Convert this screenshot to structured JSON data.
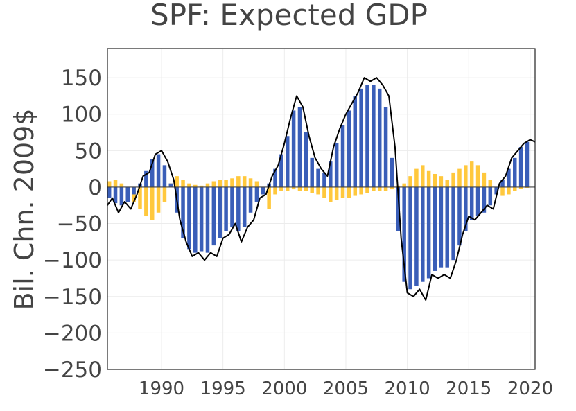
{
  "chart_data": {
    "type": "bar",
    "title": "SPF: Expected GDP",
    "xlabel": "",
    "ylabel": "Bil. Chn. 2009$",
    "xlim": [
      1985.6,
      2020.4
    ],
    "ylim": [
      -250,
      190
    ],
    "x_ticks": [
      {
        "value": 1990,
        "label": "1990"
      },
      {
        "value": 1995,
        "label": "1995"
      },
      {
        "value": 2000,
        "label": "2000"
      },
      {
        "value": 2005,
        "label": "2005"
      },
      {
        "value": 2010,
        "label": "2010"
      },
      {
        "value": 2015,
        "label": "2015"
      },
      {
        "value": 2020,
        "label": "2020"
      }
    ],
    "y_ticks": [
      {
        "value": 150,
        "label": "150"
      },
      {
        "value": 100,
        "label": "100"
      },
      {
        "value": 50,
        "label": "50"
      },
      {
        "value": 0,
        "label": "0"
      },
      {
        "value": -50,
        "label": "−50"
      },
      {
        "value": -100,
        "label": "−100"
      },
      {
        "value": -150,
        "label": "−150"
      },
      {
        "value": -200,
        "label": "−200"
      },
      {
        "value": -250,
        "label": "−250"
      }
    ],
    "grid": true,
    "legend": "none",
    "colors": {
      "blue": "#3a5eb8",
      "yellow": "#ffc83d",
      "line": "#000000",
      "grid": "#ececec"
    },
    "series": [
      {
        "id": "blue-bars",
        "x": [
          1985.75,
          1986.25,
          1986.75,
          1987.25,
          1987.75,
          1988.25,
          1988.75,
          1989.25,
          1989.75,
          1990.25,
          1990.75,
          1991.25,
          1991.75,
          1992.25,
          1992.75,
          1993.25,
          1993.75,
          1994.25,
          1994.75,
          1995.25,
          1995.75,
          1996.25,
          1996.75,
          1997.25,
          1997.75,
          1998.25,
          1998.75,
          1999.25,
          1999.75,
          2000.25,
          2000.75,
          2001.25,
          2001.75,
          2002.25,
          2002.75,
          2003.25,
          2003.75,
          2004.25,
          2004.75,
          2005.25,
          2005.75,
          2006.25,
          2006.75,
          2007.25,
          2007.75,
          2008.25,
          2008.75,
          2009.25,
          2009.75,
          2010.25,
          2010.75,
          2011.25,
          2011.75,
          2012.25,
          2012.75,
          2013.25,
          2013.75,
          2014.25,
          2014.75,
          2015.25,
          2015.75,
          2016.25,
          2016.75,
          2017.25,
          2017.75,
          2018.25,
          2018.75,
          2019.25,
          2019.75
        ],
        "values": [
          -15,
          -22,
          -25,
          -20,
          -10,
          5,
          22,
          38,
          45,
          30,
          5,
          -35,
          -70,
          -85,
          -90,
          -88,
          -90,
          -80,
          -70,
          -60,
          -55,
          -60,
          -55,
          -35,
          -20,
          -10,
          5,
          25,
          45,
          70,
          105,
          110,
          75,
          40,
          25,
          20,
          35,
          60,
          85,
          105,
          125,
          135,
          140,
          140,
          135,
          110,
          40,
          -60,
          -130,
          -140,
          -135,
          -130,
          -125,
          -115,
          -110,
          -110,
          -100,
          -80,
          -60,
          -45,
          -40,
          -35,
          -25,
          -10,
          10,
          25,
          40,
          55,
          62
        ]
      },
      {
        "id": "yellow-bars",
        "x": [
          1985.75,
          1986.25,
          1986.75,
          1987.25,
          1987.75,
          1988.25,
          1988.75,
          1989.25,
          1989.75,
          1990.25,
          1990.75,
          1991.25,
          1991.75,
          1992.25,
          1992.75,
          1993.25,
          1993.75,
          1994.25,
          1994.75,
          1995.25,
          1995.75,
          1996.25,
          1996.75,
          1997.25,
          1997.75,
          1998.25,
          1998.75,
          1999.25,
          1999.75,
          2000.25,
          2000.75,
          2001.25,
          2001.75,
          2002.25,
          2002.75,
          2003.25,
          2003.75,
          2004.25,
          2004.75,
          2005.25,
          2005.75,
          2006.25,
          2006.75,
          2007.25,
          2007.75,
          2008.25,
          2008.75,
          2009.25,
          2009.75,
          2010.25,
          2010.75,
          2011.25,
          2011.75,
          2012.25,
          2012.75,
          2013.25,
          2013.75,
          2014.25,
          2014.75,
          2015.25,
          2015.75,
          2016.25,
          2016.75,
          2017.25,
          2017.75,
          2018.25,
          2018.75,
          2019.25,
          2019.75
        ],
        "values": [
          8,
          10,
          5,
          -5,
          -20,
          -30,
          -40,
          -45,
          -35,
          -20,
          5,
          15,
          10,
          5,
          3,
          2,
          5,
          8,
          10,
          10,
          12,
          15,
          15,
          12,
          8,
          -10,
          -30,
          -10,
          -5,
          -5,
          -3,
          -5,
          -5,
          -8,
          -10,
          -15,
          -20,
          -18,
          -15,
          -15,
          -12,
          -10,
          -8,
          -5,
          -5,
          -5,
          -3,
          2,
          5,
          15,
          25,
          30,
          22,
          18,
          15,
          10,
          20,
          25,
          30,
          35,
          30,
          20,
          10,
          -5,
          -12,
          -10,
          -5,
          -2,
          -1
        ]
      },
      {
        "id": "black-line",
        "x": [
          1985.6,
          1986.0,
          1986.5,
          1987.0,
          1987.5,
          1988.0,
          1988.5,
          1989.0,
          1989.5,
          1990.0,
          1990.5,
          1991.0,
          1991.5,
          1992.0,
          1992.5,
          1993.0,
          1993.5,
          1994.0,
          1994.5,
          1995.0,
          1995.5,
          1996.0,
          1996.5,
          1997.0,
          1997.5,
          1998.0,
          1998.5,
          1999.0,
          1999.5,
          2000.0,
          2000.5,
          2001.0,
          2001.5,
          2002.0,
          2002.5,
          2003.0,
          2003.5,
          2004.0,
          2004.5,
          2005.0,
          2005.5,
          2006.0,
          2006.5,
          2007.0,
          2007.5,
          2008.0,
          2008.5,
          2009.0,
          2009.5,
          2010.0,
          2010.5,
          2011.0,
          2011.5,
          2012.0,
          2012.5,
          2013.0,
          2013.5,
          2014.0,
          2014.5,
          2015.0,
          2015.5,
          2016.0,
          2016.5,
          2017.0,
          2017.5,
          2018.0,
          2018.5,
          2019.0,
          2019.5,
          2020.0,
          2020.4
        ],
        "values": [
          -25,
          -15,
          -35,
          -20,
          -30,
          -10,
          15,
          20,
          45,
          50,
          35,
          10,
          -45,
          -75,
          -95,
          -90,
          -100,
          -90,
          -95,
          -70,
          -65,
          -50,
          -75,
          -55,
          -45,
          -15,
          -10,
          15,
          30,
          60,
          95,
          125,
          110,
          70,
          40,
          25,
          15,
          55,
          80,
          100,
          115,
          130,
          150,
          145,
          150,
          140,
          125,
          55,
          -70,
          -145,
          -150,
          -140,
          -155,
          -120,
          -125,
          -120,
          -125,
          -100,
          -65,
          -40,
          -45,
          -35,
          -25,
          -30,
          5,
          15,
          40,
          50,
          60,
          65,
          62
        ]
      }
    ]
  }
}
